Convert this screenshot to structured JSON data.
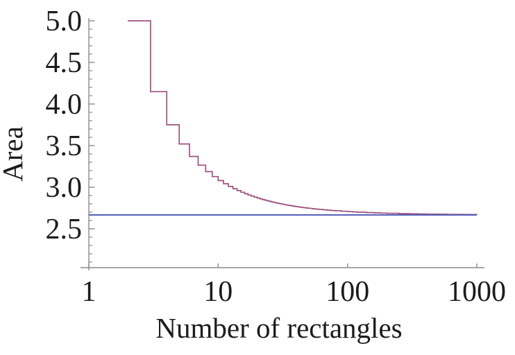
{
  "chart_data": {
    "type": "line",
    "title": "",
    "xlabel": "Number of rectangles",
    "ylabel": "Area",
    "x_scale": "log",
    "xlim": [
      1,
      1000
    ],
    "ylim": [
      2.0,
      5.0
    ],
    "x_ticks": [
      {
        "value": 1,
        "label": "1"
      },
      {
        "value": 10,
        "label": "10"
      },
      {
        "value": 100,
        "label": "100"
      },
      {
        "value": 1000,
        "label": "1000"
      }
    ],
    "y_ticks": [
      {
        "value": 2.5,
        "label": "2.5"
      },
      {
        "value": 3.0,
        "label": "3.0"
      },
      {
        "value": 3.5,
        "label": "3.5"
      },
      {
        "value": 4.0,
        "label": "4.0"
      },
      {
        "value": 4.5,
        "label": "4.5"
      },
      {
        "value": 5.0,
        "label": "5.0"
      }
    ],
    "y_minor_tick_step": 0.1,
    "grid": "off",
    "legend": "none",
    "style": {
      "axis_color": "#8a8a8a",
      "text_color": "#1c1c1c",
      "background": "#ffffff"
    },
    "series": [
      {
        "name": "riemann-sum-staircase",
        "style": "step",
        "color": "#9e5181",
        "points": [
          [
            2,
            5.0
          ],
          [
            3,
            4.1481
          ],
          [
            4,
            3.75
          ],
          [
            5,
            3.52
          ],
          [
            6,
            3.3704
          ],
          [
            7,
            3.2653
          ],
          [
            8,
            3.1875
          ],
          [
            9,
            3.1276
          ],
          [
            10,
            3.08
          ],
          [
            11,
            3.0413
          ],
          [
            12,
            3.0093
          ],
          [
            13,
            2.9822
          ],
          [
            14,
            2.9592
          ],
          [
            15,
            2.9393
          ],
          [
            16,
            2.9219
          ],
          [
            17,
            2.9066
          ],
          [
            18,
            2.893
          ],
          [
            19,
            2.8809
          ],
          [
            20,
            2.87
          ],
          [
            21,
            2.8602
          ],
          [
            22,
            2.8512
          ],
          [
            23,
            2.8431
          ],
          [
            24,
            2.8356
          ],
          [
            25,
            2.8288
          ],
          [
            26,
            2.8225
          ],
          [
            27,
            2.8167
          ],
          [
            28,
            2.8112
          ],
          [
            29,
            2.8062
          ],
          [
            30,
            2.8015
          ],
          [
            31,
            2.7971
          ],
          [
            32,
            2.793
          ],
          [
            33,
            2.7891
          ],
          [
            34,
            2.7854
          ],
          [
            35,
            2.782
          ],
          [
            36,
            2.7788
          ],
          [
            37,
            2.7758
          ],
          [
            38,
            2.7729
          ],
          [
            39,
            2.7701
          ],
          [
            40,
            2.7675
          ],
          [
            41,
            2.765
          ],
          [
            42,
            2.7627
          ],
          [
            43,
            2.7604
          ],
          [
            44,
            2.7583
          ],
          [
            45,
            2.7562
          ],
          [
            46,
            2.7542
          ],
          [
            47,
            2.7523
          ],
          [
            48,
            2.7505
          ],
          [
            49,
            2.7488
          ],
          [
            50,
            2.7472
          ],
          [
            52,
            2.7441
          ],
          [
            54,
            2.7412
          ],
          [
            56,
            2.7385
          ],
          [
            58,
            2.736
          ],
          [
            60,
            2.7337
          ],
          [
            65,
            2.7285
          ],
          [
            70,
            2.7241
          ],
          [
            75,
            2.7202
          ],
          [
            80,
            2.7169
          ],
          [
            90,
            2.7112
          ],
          [
            100,
            2.7068
          ],
          [
            110,
            2.7032
          ],
          [
            120,
            2.7001
          ],
          [
            140,
            2.6953
          ],
          [
            160,
            2.6917
          ],
          [
            180,
            2.6889
          ],
          [
            200,
            2.6867
          ],
          [
            250,
            2.6827
          ],
          [
            300,
            2.68
          ],
          [
            350,
            2.6781
          ],
          [
            400,
            2.6767
          ],
          [
            500,
            2.6747
          ],
          [
            600,
            2.6733
          ],
          [
            800,
            2.6717
          ],
          [
            1000,
            2.6707
          ]
        ]
      },
      {
        "name": "exact-area-limit-line",
        "style": "hline",
        "color": "#5560b8",
        "y": 2.6667,
        "x_from": 1,
        "x_to": 1000
      }
    ]
  }
}
